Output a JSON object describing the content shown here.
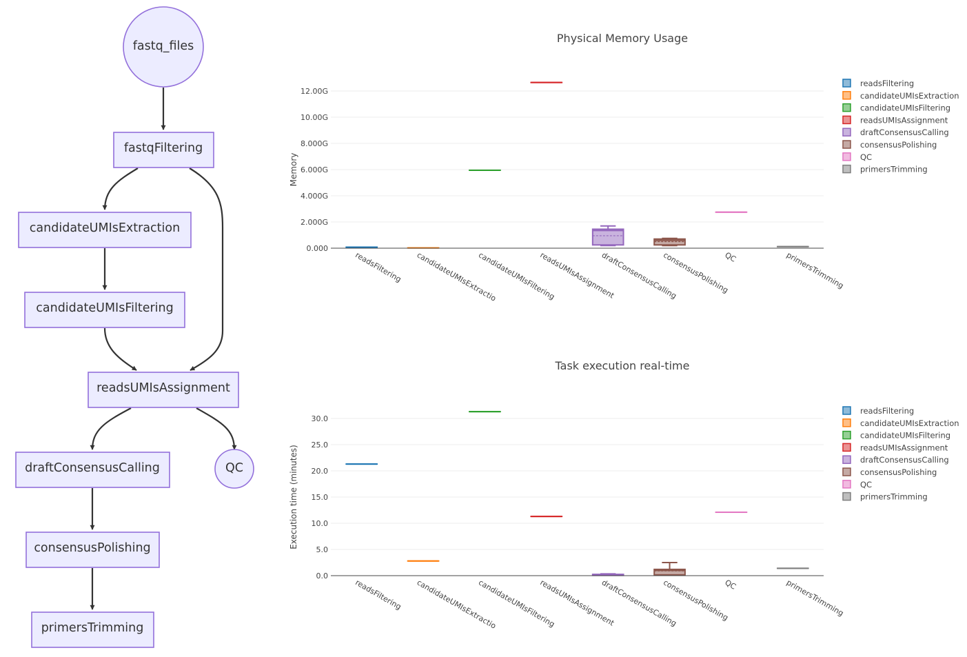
{
  "flowchart": {
    "nodes": [
      {
        "id": "fastq_files",
        "label": "fastq_files",
        "shape": "circle"
      },
      {
        "id": "fastqFiltering",
        "label": "fastqFiltering",
        "shape": "rect"
      },
      {
        "id": "candidateUMIsExtraction",
        "label": "candidateUMIsExtraction",
        "shape": "rect"
      },
      {
        "id": "candidateUMIsFiltering",
        "label": "candidateUMIsFiltering",
        "shape": "rect"
      },
      {
        "id": "readsUMIsAssignment",
        "label": "readsUMIsAssignment",
        "shape": "rect"
      },
      {
        "id": "draftConsensusCalling",
        "label": "draftConsensusCalling",
        "shape": "rect"
      },
      {
        "id": "QC",
        "label": "QC",
        "shape": "circle"
      },
      {
        "id": "consensusPolishing",
        "label": "consensusPolishing",
        "shape": "rect"
      },
      {
        "id": "primersTrimming",
        "label": "primersTrimming",
        "shape": "rect"
      }
    ],
    "edges": [
      [
        "fastq_files",
        "fastqFiltering"
      ],
      [
        "fastqFiltering",
        "candidateUMIsExtraction"
      ],
      [
        "fastqFiltering",
        "readsUMIsAssignment"
      ],
      [
        "candidateUMIsExtraction",
        "candidateUMIsFiltering"
      ],
      [
        "candidateUMIsFiltering",
        "readsUMIsAssignment"
      ],
      [
        "readsUMIsAssignment",
        "draftConsensusCalling"
      ],
      [
        "readsUMIsAssignment",
        "QC"
      ],
      [
        "draftConsensusCalling",
        "consensusPolishing"
      ],
      [
        "consensusPolishing",
        "primersTrimming"
      ]
    ]
  },
  "chart_data": [
    {
      "type": "box",
      "title": "Physical Memory Usage",
      "xlabel": "",
      "ylabel": "Memory",
      "ylim": [
        0,
        12.6
      ],
      "yticks": [
        0,
        2,
        4,
        6,
        8,
        10,
        12
      ],
      "ytick_labels": [
        "0.000",
        "2.000G",
        "4.000G",
        "6.000G",
        "8.000G",
        "10.00G",
        "12.00G"
      ],
      "categories": [
        "readsFiltering",
        "candidateUMIsExtraction",
        "candidateUMIsFiltering",
        "readsUMIsAssignment",
        "draftConsensusCalling",
        "consensusPolishing",
        "QC",
        "primersTrimming"
      ],
      "tick_labels": [
        "readsFiltering",
        "candidateUMIsExtractio",
        "candidateUMIsFiltering",
        "readsUMIsAssignment",
        "draftConsensusCalling",
        "consensusPolishing",
        "QC",
        "primersTrimming"
      ],
      "legend_position": "top-right",
      "series": [
        {
          "name": "readsFiltering",
          "color": "#1f77b4",
          "min": 0.08,
          "q1": 0.08,
          "median": 0.08,
          "mean": 0.08,
          "q3": 0.08,
          "max": 0.08
        },
        {
          "name": "candidateUMIsExtraction",
          "color": "#ff7f0e",
          "min": 0.02,
          "q1": 0.02,
          "median": 0.02,
          "mean": 0.02,
          "q3": 0.02,
          "max": 0.02
        },
        {
          "name": "candidateUMIsFiltering",
          "color": "#2ca02c",
          "min": 5.95,
          "q1": 5.95,
          "median": 5.95,
          "mean": 5.95,
          "q3": 5.95,
          "max": 5.95
        },
        {
          "name": "readsUMIsAssignment",
          "color": "#d62728",
          "min": 12.65,
          "q1": 12.65,
          "median": 12.65,
          "mean": 12.65,
          "q3": 12.65,
          "max": 12.65
        },
        {
          "name": "draftConsensusCalling",
          "color": "#9467bd",
          "min": 0.2,
          "q1": 0.25,
          "median": 1.35,
          "mean": 0.95,
          "q3": 1.45,
          "max": 1.7
        },
        {
          "name": "consensusPolishing",
          "color": "#8c564b",
          "min": 0.2,
          "q1": 0.25,
          "median": 0.6,
          "mean": 0.5,
          "q3": 0.7,
          "max": 0.75
        },
        {
          "name": "QC",
          "color": "#e377c2",
          "min": 2.75,
          "q1": 2.75,
          "median": 2.75,
          "mean": 2.75,
          "q3": 2.75,
          "max": 2.75
        },
        {
          "name": "primersTrimming",
          "color": "#7f7f7f",
          "min": 0.12,
          "q1": 0.12,
          "median": 0.12,
          "mean": 0.12,
          "q3": 0.12,
          "max": 0.12
        }
      ]
    },
    {
      "type": "box",
      "title": "Task execution real-time",
      "xlabel": "",
      "ylabel": "Execution time (minutes)",
      "ylim": [
        0,
        31.5
      ],
      "yticks": [
        0,
        5,
        10,
        15,
        20,
        25,
        30
      ],
      "ytick_labels": [
        "0.0",
        "5.0",
        "10.0",
        "15.0",
        "20.0",
        "25.0",
        "30.0"
      ],
      "categories": [
        "readsFiltering",
        "candidateUMIsExtraction",
        "candidateUMIsFiltering",
        "readsUMIsAssignment",
        "draftConsensusCalling",
        "consensusPolishing",
        "QC",
        "primersTrimming"
      ],
      "tick_labels": [
        "readsFiltering",
        "candidateUMIsExtractio",
        "candidateUMIsFiltering",
        "readsUMIsAssignment",
        "draftConsensusCalling",
        "consensusPolishing",
        "QC",
        "primersTrimming"
      ],
      "legend_position": "top-right",
      "series": [
        {
          "name": "readsFiltering",
          "color": "#1f77b4",
          "min": 21.3,
          "q1": 21.3,
          "median": 21.3,
          "mean": 21.3,
          "q3": 21.3,
          "max": 21.3
        },
        {
          "name": "candidateUMIsExtraction",
          "color": "#ff7f0e",
          "min": 2.8,
          "q1": 2.8,
          "median": 2.8,
          "mean": 2.8,
          "q3": 2.8,
          "max": 2.8
        },
        {
          "name": "candidateUMIsFiltering",
          "color": "#2ca02c",
          "min": 31.3,
          "q1": 31.3,
          "median": 31.3,
          "mean": 31.3,
          "q3": 31.3,
          "max": 31.3
        },
        {
          "name": "readsUMIsAssignment",
          "color": "#d62728",
          "min": 11.3,
          "q1": 11.3,
          "median": 11.3,
          "mean": 11.3,
          "q3": 11.3,
          "max": 11.3
        },
        {
          "name": "draftConsensusCalling",
          "color": "#9467bd",
          "min": 0.05,
          "q1": 0.05,
          "median": 0.15,
          "mean": 0.15,
          "q3": 0.25,
          "max": 0.35
        },
        {
          "name": "consensusPolishing",
          "color": "#8c564b",
          "min": 0.1,
          "q1": 0.15,
          "median": 1.0,
          "mean": 0.9,
          "q3": 1.2,
          "max": 2.5
        },
        {
          "name": "QC",
          "color": "#e377c2",
          "min": 12.1,
          "q1": 12.1,
          "median": 12.1,
          "mean": 12.1,
          "q3": 12.1,
          "max": 12.1
        },
        {
          "name": "primersTrimming",
          "color": "#7f7f7f",
          "min": 1.4,
          "q1": 1.4,
          "median": 1.4,
          "mean": 1.4,
          "q3": 1.4,
          "max": 1.4
        }
      ]
    }
  ]
}
